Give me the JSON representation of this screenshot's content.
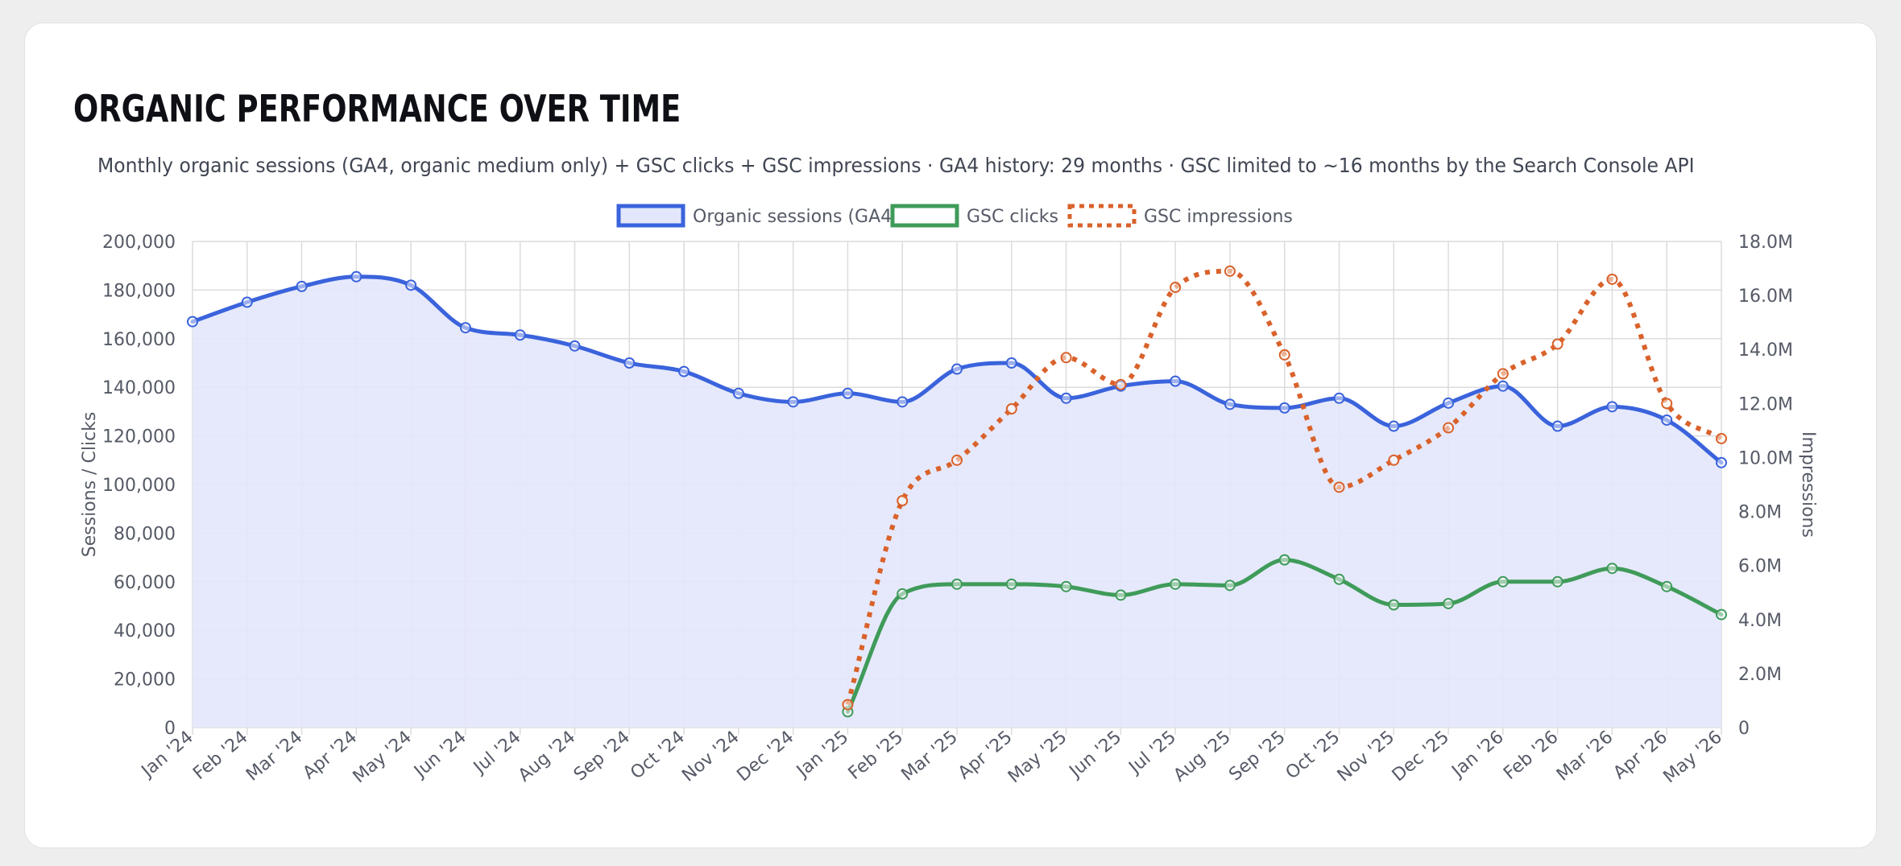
{
  "header": {
    "title": "ORGANIC PERFORMANCE OVER TIME",
    "subtitle": "Monthly organic sessions (GA4, organic medium only) + GSC clicks + GSC impressions · GA4 history: 29 months · GSC limited to ~16 months by the Search Console API"
  },
  "chart_data": {
    "type": "line",
    "categories": [
      "Jan '24",
      "Feb '24",
      "Mar '24",
      "Apr '24",
      "May '24",
      "Jun '24",
      "Jul '24",
      "Aug '24",
      "Sep '24",
      "Oct '24",
      "Nov '24",
      "Dec '24",
      "Jan '25",
      "Feb '25",
      "Mar '25",
      "Apr '25",
      "May '25",
      "Jun '25",
      "Jul '25",
      "Aug '25",
      "Sep '25",
      "Oct '25",
      "Nov '25",
      "Dec '25",
      "Jan '26",
      "Feb '26",
      "Mar '26",
      "Apr '26",
      "May '26"
    ],
    "series": [
      {
        "name": "Organic sessions (GA4)",
        "axis": "left",
        "color": "#3a63dc",
        "fill": "#e3e7fb",
        "style": "solid-area",
        "values": [
          167000,
          175000,
          181500,
          185500,
          182000,
          164500,
          161500,
          157000,
          150000,
          146500,
          137500,
          134000,
          137500,
          134000,
          147500,
          150000,
          135500,
          140500,
          142500,
          133000,
          131500,
          135500,
          124000,
          133500,
          140500,
          124000,
          132000,
          126500,
          109000
        ]
      },
      {
        "name": "GSC clicks",
        "axis": "left",
        "color": "#3f9b5a",
        "style": "solid",
        "values": [
          null,
          null,
          null,
          null,
          null,
          null,
          null,
          null,
          null,
          null,
          null,
          null,
          6500,
          55000,
          59000,
          59000,
          58000,
          54500,
          59000,
          58500,
          69000,
          61000,
          50500,
          51000,
          60000,
          60000,
          65500,
          58000,
          46500
        ]
      },
      {
        "name": "GSC impressions",
        "axis": "right",
        "color": "#d9622b",
        "style": "dotted",
        "values": [
          null,
          null,
          null,
          null,
          null,
          null,
          null,
          null,
          null,
          null,
          null,
          null,
          850000,
          8400000,
          9900000,
          11800000,
          13700000,
          12700000,
          16300000,
          16900000,
          13800000,
          8900000,
          9900000,
          11100000,
          13100000,
          14200000,
          16600000,
          12000000,
          10700000
        ]
      }
    ],
    "y_left": {
      "label": "Sessions / Clicks",
      "range": [
        0,
        200000
      ],
      "ticks": [
        "0",
        "20,000",
        "40,000",
        "60,000",
        "80,000",
        "100,000",
        "120,000",
        "140,000",
        "160,000",
        "180,000",
        "200,000"
      ]
    },
    "y_right": {
      "label": "Impressions",
      "range": [
        0,
        18000000
      ],
      "ticks": [
        "0",
        "2.0M",
        "4.0M",
        "6.0M",
        "8.0M",
        "10.0M",
        "12.0M",
        "14.0M",
        "16.0M",
        "18.0M"
      ]
    },
    "grid": true,
    "legend": "top-center"
  }
}
